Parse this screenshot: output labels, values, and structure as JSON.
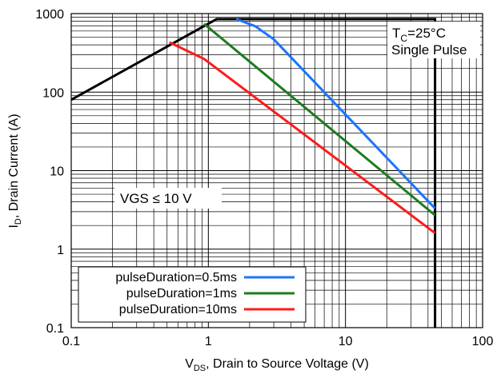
{
  "chart_data": {
    "type": "line",
    "xlabel": "V_DS, Drain to Source Voltage (V)",
    "xlabel_parts": {
      "main": "V",
      "sub": "DS",
      "rest": ", Drain to Source Voltage (V)"
    },
    "ylabel": "I_D, Drain Current (A)",
    "ylabel_parts": {
      "main": "I",
      "sub": "D",
      "rest": ", Drain Current (A)"
    },
    "x_scale": "log",
    "y_scale": "log",
    "xlim": [
      0.1,
      100
    ],
    "ylim": [
      0.1,
      1000
    ],
    "grid": true,
    "x_ticks": [
      {
        "v": 0.1,
        "label": "0.1"
      },
      {
        "v": 1,
        "label": "1"
      },
      {
        "v": 10,
        "label": "10"
      },
      {
        "v": 100,
        "label": "100"
      }
    ],
    "y_ticks": [
      {
        "v": 0.1,
        "label": "0.1"
      },
      {
        "v": 1,
        "label": "1"
      },
      {
        "v": 10,
        "label": "10"
      },
      {
        "v": 100,
        "label": "100"
      },
      {
        "v": 1000,
        "label": "1000"
      }
    ],
    "annotations": {
      "conditions_prefix": "T",
      "conditions_sub": "C",
      "conditions_rest": "=25°C",
      "pulse": "Single Pulse",
      "vgs": "VGS ≤ 10 V"
    },
    "legend_position": "bottom-left",
    "series": [
      {
        "name": "",
        "color": "#000000",
        "x": [
          0.1,
          1.15,
          45,
          45
        ],
        "y": [
          80,
          850,
          850,
          0.1
        ]
      },
      {
        "name": "pulseDuration=0.5ms",
        "color": "#1a75ff",
        "x": [
          1.6,
          2.2,
          3,
          45
        ],
        "y": [
          850,
          690,
          470,
          3.3
        ]
      },
      {
        "name": "pulseDuration=1ms",
        "color": "#1e7b1e",
        "x": [
          0.93,
          45
        ],
        "y": [
          740,
          2.7
        ]
      },
      {
        "name": "pulseDuration=10ms",
        "color": "#ff1a1a",
        "x": [
          0.52,
          0.93,
          45
        ],
        "y": [
          430,
          265,
          1.6
        ]
      }
    ]
  }
}
